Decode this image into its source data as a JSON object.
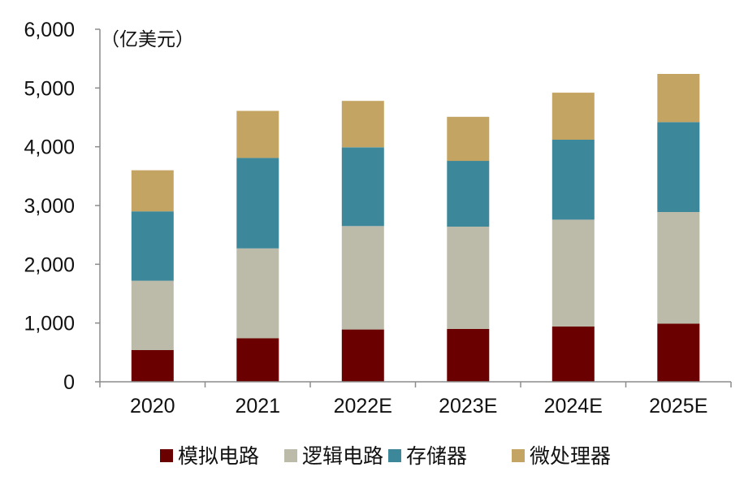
{
  "chart_data": {
    "type": "bar",
    "stacked": true,
    "title": "",
    "unit_label": "（亿美元）",
    "xlabel": "",
    "ylabel": "",
    "ylim": [
      0,
      6000
    ],
    "yticks": [
      0,
      1000,
      2000,
      3000,
      4000,
      5000,
      6000
    ],
    "ytick_labels": [
      "0",
      "1,000",
      "2,000",
      "3,000",
      "4,000",
      "5,000",
      "6,000"
    ],
    "categories": [
      "2020",
      "2021",
      "2022E",
      "2023E",
      "2024E",
      "2025E"
    ],
    "series": [
      {
        "name": "模拟电路",
        "color": "#6b0000",
        "values": [
          540,
          740,
          890,
          900,
          940,
          990
        ]
      },
      {
        "name": "逻辑电路",
        "color": "#bcbaa8",
        "values": [
          1180,
          1530,
          1760,
          1740,
          1820,
          1900
        ]
      },
      {
        "name": "存储器",
        "color": "#3c879a",
        "values": [
          1180,
          1540,
          1340,
          1120,
          1360,
          1530
        ]
      },
      {
        "name": "微处理器",
        "color": "#c4a462",
        "values": [
          700,
          800,
          790,
          750,
          800,
          820
        ]
      }
    ],
    "grid": false,
    "legend_position": "bottom"
  }
}
